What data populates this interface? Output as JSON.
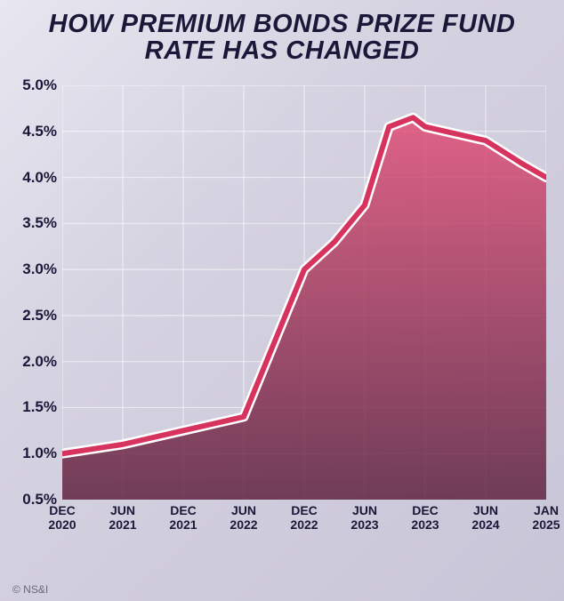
{
  "title_line1": "HOW PREMIUM BONDS PRIZE FUND",
  "title_line2": "RATE HAS CHANGED",
  "source": "© NS&I",
  "chart": {
    "type": "area-line",
    "background_gradient": [
      "#e8e6f0",
      "#c8c5d8"
    ],
    "ylim": [
      0.5,
      5.0
    ],
    "yticks": [
      0.5,
      1.0,
      1.5,
      2.0,
      2.5,
      3.0,
      3.5,
      4.0,
      4.5,
      5.0
    ],
    "ytick_labels": [
      "0.5%",
      "1.0%",
      "1.5%",
      "2.0%",
      "2.5%",
      "3.0%",
      "3.5%",
      "4.0%",
      "4.5%",
      "5.0%"
    ],
    "ytick_fontsize": 17,
    "xtick_labels": [
      "DEC\n2020",
      "JUN\n2021",
      "DEC\n2021",
      "JUN\n2022",
      "DEC\n2022",
      "JUN\n2023",
      "DEC\n2023",
      "JUN\n2024",
      "JAN\n2025"
    ],
    "xtick_fontsize": 14,
    "grid_color": "#ffffff",
    "grid_opacity": 0.55,
    "grid_width": 1.2,
    "line_color": "#d7335f",
    "line_outline_color": "#ffffff",
    "line_width": 6,
    "line_outline_width": 11,
    "area_gradient_top": "#e14a73",
    "area_gradient_bottom": "#5a1d3a",
    "area_opacity": 0.82,
    "series": {
      "x": [
        0,
        1,
        2,
        3,
        4,
        4.5,
        5,
        5.4,
        5.8,
        6,
        7,
        7.6,
        8
      ],
      "y": [
        1.0,
        1.1,
        1.25,
        1.4,
        3.0,
        3.3,
        3.7,
        4.55,
        4.65,
        4.55,
        4.4,
        4.15,
        4.0
      ]
    }
  }
}
